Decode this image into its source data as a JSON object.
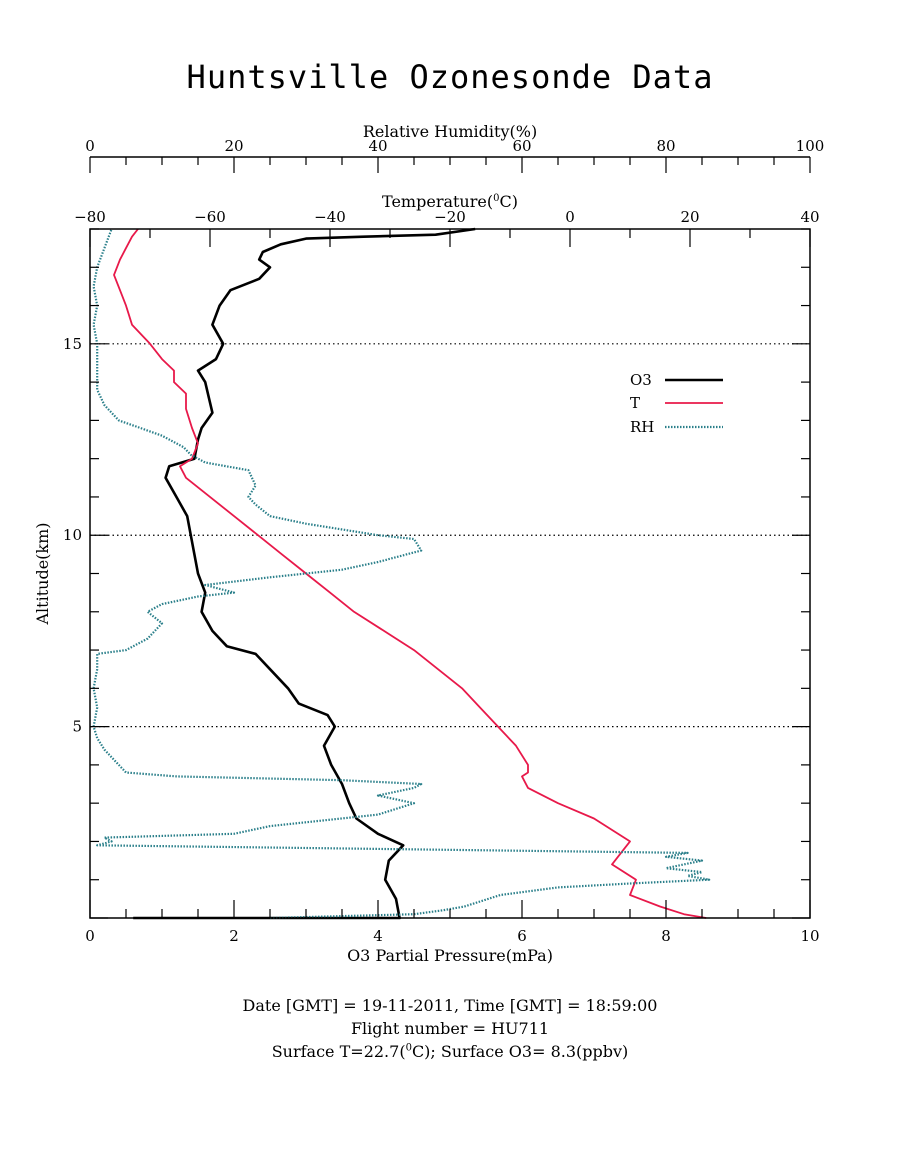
{
  "title": "Huntsville Ozonesonde Data",
  "footer": {
    "line1": "Date [GMT] = 19-11-2011,  Time [GMT] = 18:59:00",
    "line2": "Flight number = HU711",
    "line3_pre": "Surface T=22.7(",
    "line3_sup": "0",
    "line3_post": "C); Surface O3= 8.3(ppbv)"
  },
  "colors": {
    "o3": "#000000",
    "t": "#e8194a",
    "rh": "#2a7f8a"
  },
  "chart_data": {
    "type": "line",
    "ylabel": "Altitude(km)",
    "ylim": [
      0,
      18
    ],
    "yticks": [
      5,
      10,
      15
    ],
    "grid": "dotted horizontal at 5, 10, 15",
    "legend_position": "upper-right",
    "axes": {
      "o3": {
        "label": "O3 Partial Pressure(mPa)",
        "range": [
          0,
          10
        ],
        "ticks": [
          "0",
          "2",
          "4",
          "6",
          "8",
          "10"
        ],
        "position": "bottom"
      },
      "t": {
        "label_pre": "Temperature(",
        "label_sup": "0",
        "label_post": "C)",
        "range": [
          -80,
          40
        ],
        "ticks": [
          "-80",
          "-60",
          "-40",
          "-20",
          "0",
          "20",
          "40"
        ],
        "position": "top"
      },
      "rh": {
        "label": "Relative Humidity(%)",
        "range": [
          0,
          100
        ],
        "ticks": [
          "0",
          "20",
          "40",
          "60",
          "80",
          "100"
        ],
        "position": "top"
      }
    },
    "series": [
      {
        "name": "O3",
        "axis": "o3",
        "points": [
          [
            0.6,
            0
          ],
          [
            4.3,
            0
          ],
          [
            4.25,
            0.5
          ],
          [
            4.1,
            1.0
          ],
          [
            4.15,
            1.5
          ],
          [
            4.35,
            1.9
          ],
          [
            4.0,
            2.2
          ],
          [
            3.7,
            2.6
          ],
          [
            3.6,
            3.0
          ],
          [
            3.5,
            3.5
          ],
          [
            3.35,
            4.0
          ],
          [
            3.25,
            4.5
          ],
          [
            3.4,
            5.0
          ],
          [
            3.3,
            5.3
          ],
          [
            2.9,
            5.6
          ],
          [
            2.75,
            6.0
          ],
          [
            2.5,
            6.5
          ],
          [
            2.3,
            6.9
          ],
          [
            1.9,
            7.1
          ],
          [
            1.7,
            7.5
          ],
          [
            1.55,
            8.0
          ],
          [
            1.6,
            8.5
          ],
          [
            1.5,
            9.0
          ],
          [
            1.45,
            9.5
          ],
          [
            1.4,
            10.0
          ],
          [
            1.35,
            10.5
          ],
          [
            1.2,
            11.0
          ],
          [
            1.05,
            11.5
          ],
          [
            1.1,
            11.8
          ],
          [
            1.45,
            12.0
          ],
          [
            1.5,
            12.5
          ],
          [
            1.55,
            12.8
          ],
          [
            1.7,
            13.2
          ],
          [
            1.65,
            13.6
          ],
          [
            1.6,
            14.0
          ],
          [
            1.5,
            14.3
          ],
          [
            1.75,
            14.6
          ],
          [
            1.85,
            15.0
          ],
          [
            1.7,
            15.5
          ],
          [
            1.8,
            16.0
          ],
          [
            1.95,
            16.4
          ],
          [
            2.35,
            16.7
          ],
          [
            2.5,
            17.0
          ],
          [
            2.35,
            17.2
          ],
          [
            2.4,
            17.4
          ],
          [
            2.65,
            17.6
          ],
          [
            3.0,
            17.75
          ],
          [
            3.8,
            17.8
          ],
          [
            4.8,
            17.85
          ],
          [
            5.35,
            18.0
          ]
        ]
      },
      {
        "name": "T",
        "axis": "t",
        "points": [
          [
            22.7,
            0
          ],
          [
            19,
            0.1
          ],
          [
            15,
            0.3
          ],
          [
            10,
            0.6
          ],
          [
            11,
            1.0
          ],
          [
            7,
            1.4
          ],
          [
            9,
            1.8
          ],
          [
            10,
            2.0
          ],
          [
            8,
            2.2
          ],
          [
            4,
            2.6
          ],
          [
            -2,
            3.0
          ],
          [
            -7,
            3.4
          ],
          [
            -8,
            3.7
          ],
          [
            -7,
            3.8
          ],
          [
            -7,
            4.0
          ],
          [
            -9,
            4.5
          ],
          [
            -12,
            5.0
          ],
          [
            -15,
            5.5
          ],
          [
            -18,
            6.0
          ],
          [
            -22,
            6.5
          ],
          [
            -26,
            7.0
          ],
          [
            -31,
            7.5
          ],
          [
            -36,
            8.0
          ],
          [
            -40,
            8.5
          ],
          [
            -44,
            9.0
          ],
          [
            -48,
            9.5
          ],
          [
            -52,
            10.0
          ],
          [
            -56,
            10.5
          ],
          [
            -60,
            11.0
          ],
          [
            -64,
            11.5
          ],
          [
            -65,
            11.8
          ],
          [
            -63,
            12.0
          ],
          [
            -62,
            12.4
          ],
          [
            -63,
            12.8
          ],
          [
            -64,
            13.3
          ],
          [
            -64,
            13.7
          ],
          [
            -66,
            14.0
          ],
          [
            -66,
            14.3
          ],
          [
            -68,
            14.6
          ],
          [
            -70,
            15.0
          ],
          [
            -73,
            15.5
          ],
          [
            -74,
            16.0
          ],
          [
            -75,
            16.4
          ],
          [
            -76,
            16.8
          ],
          [
            -75,
            17.2
          ],
          [
            -74,
            17.5
          ],
          [
            -73,
            17.8
          ],
          [
            -72,
            18.0
          ]
        ]
      },
      {
        "name": "RH",
        "axis": "rh",
        "points": [
          [
            25,
            0
          ],
          [
            45,
            0.1
          ],
          [
            49,
            0.2
          ],
          [
            52,
            0.3
          ],
          [
            57,
            0.6
          ],
          [
            65,
            0.8
          ],
          [
            75,
            0.9
          ],
          [
            86,
            1.0
          ],
          [
            83,
            1.1
          ],
          [
            85,
            1.2
          ],
          [
            80,
            1.3
          ],
          [
            85,
            1.5
          ],
          [
            80,
            1.6
          ],
          [
            83,
            1.7
          ],
          [
            1,
            1.9
          ],
          [
            3,
            2.0
          ],
          [
            2,
            2.1
          ],
          [
            20,
            2.2
          ],
          [
            25,
            2.4
          ],
          [
            40,
            2.7
          ],
          [
            45,
            3.0
          ],
          [
            40,
            3.2
          ],
          [
            45,
            3.4
          ],
          [
            46,
            3.5
          ],
          [
            35,
            3.6
          ],
          [
            12,
            3.7
          ],
          [
            5,
            3.8
          ],
          [
            4,
            4.0
          ],
          [
            2,
            4.4
          ],
          [
            1,
            4.7
          ],
          [
            0.5,
            5.0
          ],
          [
            1,
            5.5
          ],
          [
            0.5,
            6.0
          ],
          [
            1,
            6.5
          ],
          [
            1,
            6.9
          ],
          [
            5,
            7.0
          ],
          [
            8,
            7.3
          ],
          [
            10,
            7.7
          ],
          [
            8,
            8.0
          ],
          [
            10,
            8.2
          ],
          [
            15,
            8.4
          ],
          [
            20,
            8.5
          ],
          [
            16,
            8.7
          ],
          [
            25,
            8.9
          ],
          [
            35,
            9.1
          ],
          [
            40,
            9.3
          ],
          [
            46,
            9.6
          ],
          [
            45,
            9.9
          ],
          [
            40,
            10.0
          ],
          [
            30,
            10.3
          ],
          [
            25,
            10.5
          ],
          [
            23,
            10.8
          ],
          [
            22,
            11.0
          ],
          [
            23,
            11.3
          ],
          [
            22,
            11.7
          ],
          [
            16,
            11.9
          ],
          [
            14,
            12.1
          ],
          [
            13,
            12.3
          ],
          [
            10,
            12.6
          ],
          [
            7,
            12.8
          ],
          [
            4,
            13.0
          ],
          [
            2,
            13.4
          ],
          [
            1,
            13.8
          ],
          [
            1,
            14.2
          ],
          [
            1,
            14.6
          ],
          [
            1,
            15.0
          ],
          [
            0.5,
            15.5
          ],
          [
            1,
            16.0
          ],
          [
            0.5,
            16.5
          ],
          [
            1,
            17.0
          ],
          [
            2,
            17.5
          ],
          [
            3,
            18.0
          ]
        ]
      }
    ]
  }
}
